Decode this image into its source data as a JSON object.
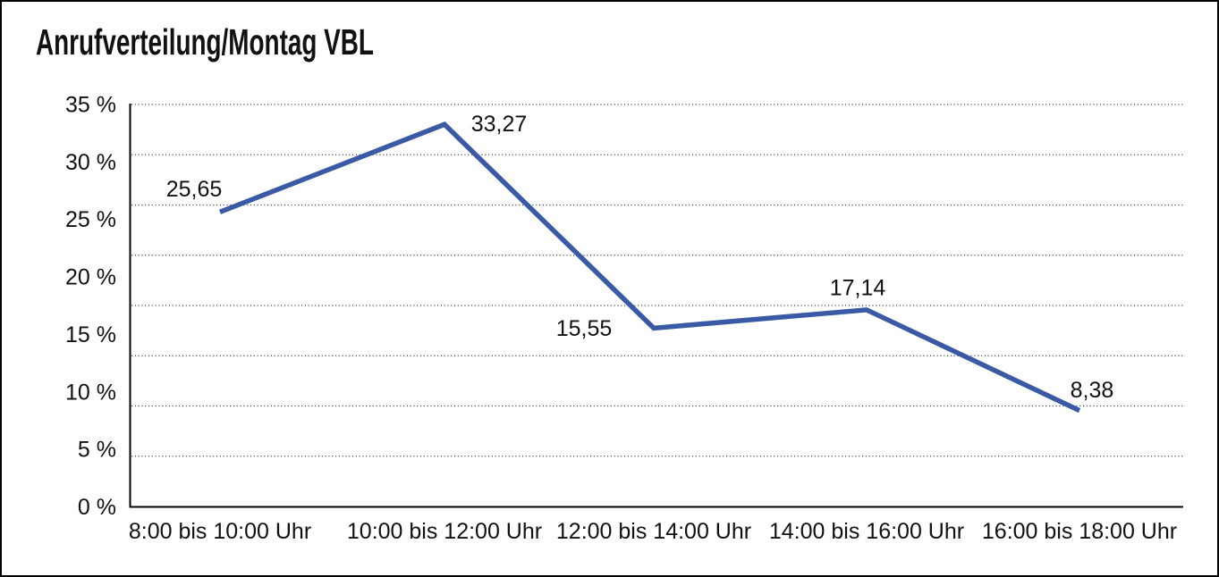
{
  "chart_data": {
    "type": "line",
    "title": "Anrufverteilung/Montag VBL",
    "categories": [
      "8:00 bis 10:00 Uhr",
      "10:00 bis 12:00 Uhr",
      "12:00 bis 14:00 Uhr",
      "14:00 bis 16:00 Uhr",
      "16:00 bis 18:00 Uhr"
    ],
    "values": [
      25.65,
      33.27,
      15.55,
      17.14,
      8.38
    ],
    "value_labels": [
      "25,65",
      "33,27",
      "15,55",
      "17,14",
      "8,38"
    ],
    "xlabel": "",
    "ylabel": "",
    "ylim": [
      0,
      35
    ],
    "ytick_step": 5,
    "ytick_labels": [
      "0 %",
      "5 %",
      "10 %",
      "15 %",
      "20 %",
      "25 %",
      "30 %",
      "35 %"
    ],
    "grid": "horizontal-dotted",
    "legend_position": "none",
    "line_color": "#3A5AA6",
    "axis_color": "#000000",
    "gridline_color": "#3c3c3c",
    "background_color": "#ffffff",
    "unit": "%",
    "decimal_separator": ","
  }
}
